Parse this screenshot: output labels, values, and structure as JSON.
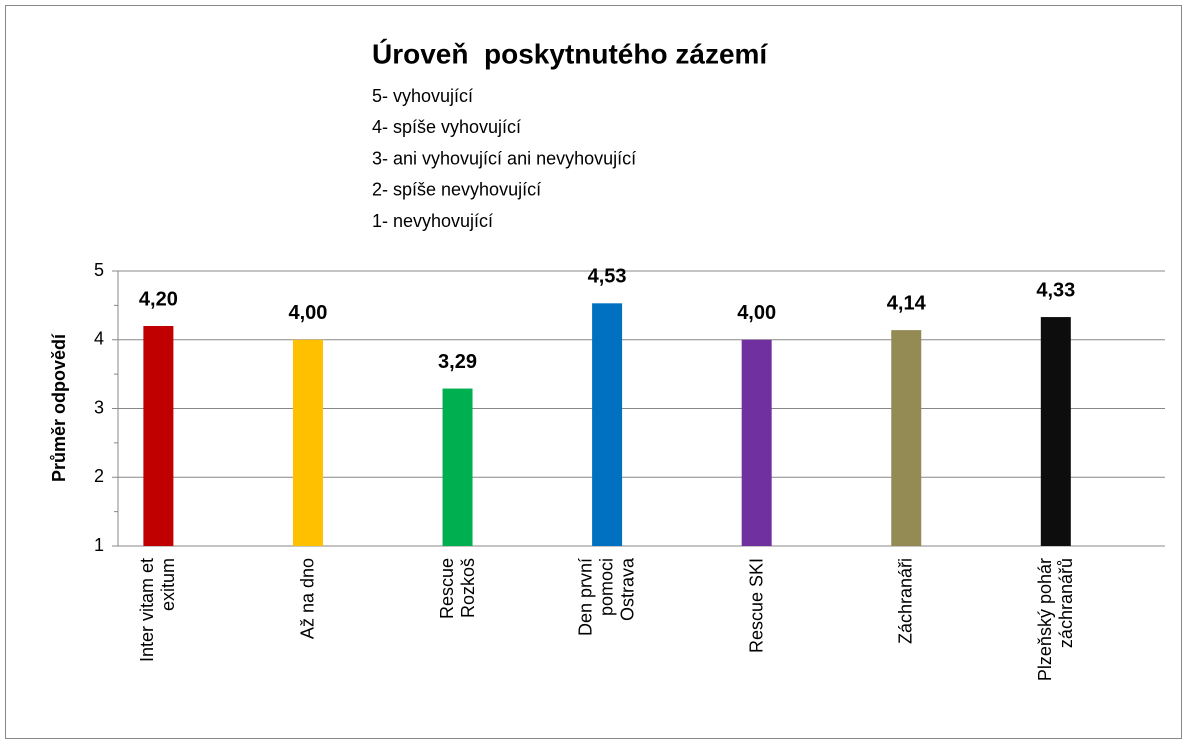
{
  "chart_data": {
    "type": "bar",
    "title": "Úroveň  poskytnutého zázemí",
    "subtitle": [
      "5- vyhovující",
      "4- spíše vyhovující",
      "3- ani vyhovující ani nevyhovující",
      "2- spíše nevyhovující",
      "1- nevyhovující"
    ],
    "y_label": "Průměr odpovědí",
    "categories": [
      "Inter vitam et exitum",
      "Až na dno",
      "Rescue Rozkoš",
      "Den první pomoci Ostrava",
      "Rescue SKI",
      "Záchranáři",
      "Plzeňský pohár záchranářů"
    ],
    "values": [
      4.2,
      4.0,
      3.29,
      4.53,
      4.0,
      4.14,
      4.33
    ],
    "value_labels": [
      "4,20",
      "4,00",
      "3,29",
      "4,53",
      "4,00",
      "4,14",
      "4,33"
    ],
    "colors": [
      "#c00000",
      "#ffc000",
      "#00b050",
      "#0070c0",
      "#7030a0",
      "#948a54",
      "#0d0d0d"
    ],
    "ylim": [
      1,
      5
    ],
    "yticks": [
      1,
      2,
      3,
      4,
      5
    ],
    "grid": true
  }
}
